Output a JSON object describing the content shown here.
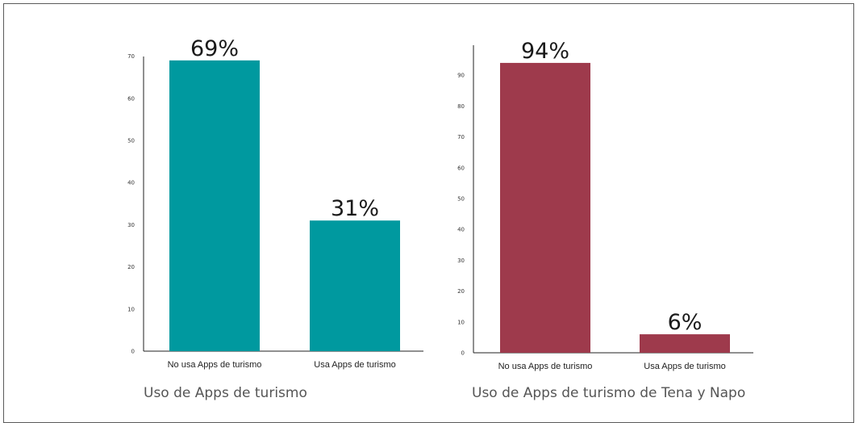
{
  "colors": {
    "left_bar": "#00999f",
    "right_bar": "#9e3a4c",
    "axis": "#222222"
  },
  "chart_data": [
    {
      "type": "bar",
      "title": "Uso de Apps de turismo",
      "categories": [
        "No usa Apps de turismo",
        "Usa Apps de turismo"
      ],
      "values": [
        69,
        31
      ],
      "data_labels": [
        "69%",
        "31%"
      ],
      "yticks": [
        "0",
        "10",
        "20",
        "30",
        "40",
        "50",
        "60",
        "70"
      ],
      "ylim": [
        0,
        70
      ],
      "grid": false,
      "xlabel": "",
      "ylabel": ""
    },
    {
      "type": "bar",
      "title": "Uso de Apps de turismo de Tena y Napo",
      "categories": [
        "No usa Apps de turismo",
        "Usa Apps de turismo"
      ],
      "values": [
        94,
        6
      ],
      "data_labels": [
        "94%",
        "6%"
      ],
      "yticks": [
        "0",
        "10",
        "20",
        "30",
        "40",
        "50",
        "60",
        "70",
        "80",
        "90"
      ],
      "ylim": [
        0,
        100
      ],
      "grid": false,
      "xlabel": "",
      "ylabel": ""
    }
  ]
}
